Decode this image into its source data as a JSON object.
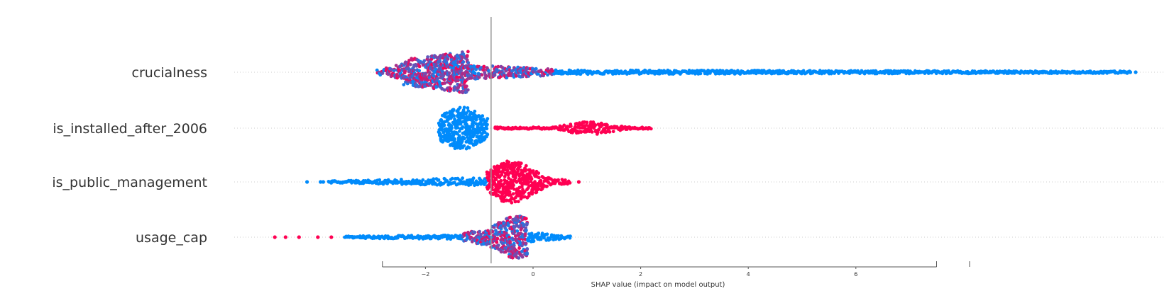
{
  "chart_data": {
    "type": "scatter",
    "subtype": "shap-beeswarm",
    "title": "",
    "xlabel": "SHAP value (impact on model output)",
    "ylabel": "",
    "xlim": [
      -2.8,
      7.5
    ],
    "x_ticks": [
      -2,
      0,
      2,
      4,
      6
    ],
    "x_tick_labels": [
      "−2",
      "0",
      "2",
      "4",
      "6"
    ],
    "vline_x": -0.78,
    "grid": false,
    "legend": "none",
    "colors": {
      "low": "#008bfb",
      "high": "#ff0052",
      "mid": "#8b2fc0",
      "vline": "#999999"
    },
    "features": [
      {
        "name": "crucialness",
        "x_range": [
          -2.95,
          11.3
        ],
        "segments": [
          {
            "x": [
              -2.9,
              -2.4
            ],
            "w": [
              0.1,
              0.4
            ],
            "color": "mix"
          },
          {
            "x": [
              -2.4,
              -1.2
            ],
            "w": [
              0.6,
              1.0
            ],
            "color": "mix"
          },
          {
            "x": [
              -1.2,
              0.4
            ],
            "w": [
              0.35,
              0.15
            ],
            "color": "mix"
          },
          {
            "x": [
              0.4,
              11.1
            ],
            "w": [
              0.1,
              0.05
            ],
            "color": "low"
          }
        ],
        "outliers": [
          {
            "x": 11.0,
            "v": 0
          },
          {
            "x": 11.1,
            "v": 0
          },
          {
            "x": 11.2,
            "v": 0
          }
        ]
      },
      {
        "name": "is_installed_after_2006",
        "x_range": [
          -1.75,
          2.2
        ],
        "segments": [
          {
            "x": [
              -1.75,
              -0.85
            ],
            "w": [
              0.4,
              0.3
            ],
            "color": "low",
            "peak": -1.33,
            "peak_w": 1.0
          },
          {
            "x": [
              -0.7,
              2.2
            ],
            "w": [
              0.05,
              0.05
            ],
            "color": "high",
            "peak": 1.05,
            "peak_w": 0.3
          }
        ],
        "outliers": [
          {
            "x": -0.7,
            "v": 1
          }
        ]
      },
      {
        "name": "is_public_management",
        "x_range": [
          -4.2,
          0.9
        ],
        "segments": [
          {
            "x": [
              -3.8,
              -0.85
            ],
            "w": [
              0.05,
              0.2
            ],
            "color": "low"
          },
          {
            "x": [
              -0.85,
              0.7
            ],
            "w": [
              0.25,
              0.1
            ],
            "color": "high",
            "peak": -0.4,
            "peak_w": 1.0
          }
        ],
        "outliers": [
          {
            "x": -4.2,
            "v": 0
          },
          {
            "x": -3.95,
            "v": 0
          },
          {
            "x": -3.9,
            "v": 0
          },
          {
            "x": 0.85,
            "v": 1
          }
        ]
      },
      {
        "name": "usage_cap",
        "x_range": [
          -4.8,
          0.7
        ],
        "segments": [
          {
            "x": [
              -3.5,
              -1.3
            ],
            "w": [
              0.05,
              0.1
            ],
            "color": "low"
          },
          {
            "x": [
              -1.3,
              -0.1
            ],
            "w": [
              0.2,
              0.7
            ],
            "color": "mix",
            "peak": -0.3,
            "peak_w": 1.0
          },
          {
            "x": [
              -0.1,
              0.7
            ],
            "w": [
              0.25,
              0.05
            ],
            "color": "low"
          }
        ],
        "outliers": [
          {
            "x": -4.8,
            "v": 1
          },
          {
            "x": -4.6,
            "v": 1
          },
          {
            "x": -4.35,
            "v": 1
          },
          {
            "x": -4.0,
            "v": 1
          },
          {
            "x": -3.75,
            "v": 1
          }
        ]
      }
    ]
  }
}
